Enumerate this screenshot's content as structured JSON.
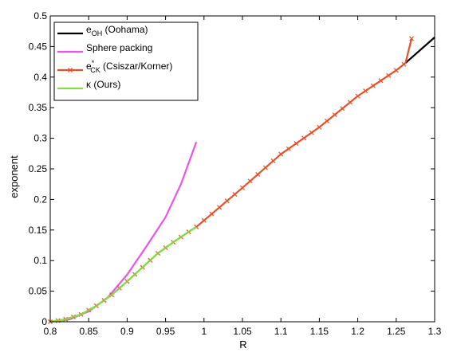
{
  "chart_data": {
    "type": "line",
    "xlabel": "R",
    "ylabel": "exponent",
    "xlim": [
      0.8,
      1.3
    ],
    "ylim": [
      0,
      0.5
    ],
    "x_ticks": [
      "0.8",
      "0.85",
      "0.9",
      "0.95",
      "1",
      "1.05",
      "1.1",
      "1.15",
      "1.2",
      "1.25",
      "1.3"
    ],
    "y_ticks": [
      "0",
      "0.05",
      "0.1",
      "0.15",
      "0.2",
      "0.25",
      "0.3",
      "0.35",
      "0.4",
      "0.45",
      "0.5"
    ],
    "legend_position": "top-left",
    "legend": [
      {
        "key": "oh",
        "label_main": "e",
        "label_sub": "OH",
        "label_sup": "",
        "label_rest": " (Oohama)",
        "color": "#000000",
        "marker": "none"
      },
      {
        "key": "sphere",
        "label_main": "Sphere packing",
        "label_sub": "",
        "label_sup": "",
        "label_rest": "",
        "color": "#e855e8",
        "marker": "none"
      },
      {
        "key": "ck",
        "label_main": "e",
        "label_sub": "CK",
        "label_sup": "*",
        "label_rest": " (Csiszar/Korner)",
        "color": "#e8502a",
        "marker": "x"
      },
      {
        "key": "kappa",
        "label_main": "κ (Ours)",
        "label_sub": "",
        "label_sup": "",
        "label_rest": "",
        "color": "#80e048",
        "marker": "none"
      }
    ],
    "series": [
      {
        "key": "oh",
        "color": "#000000",
        "marker": "none",
        "points": [
          [
            1.262,
            0.423
          ],
          [
            1.3,
            0.465
          ]
        ]
      },
      {
        "key": "sphere",
        "color": "#e855e8",
        "marker": "none",
        "points": [
          [
            0.8,
            0.0
          ],
          [
            0.825,
            0.004
          ],
          [
            0.85,
            0.017
          ],
          [
            0.875,
            0.04
          ],
          [
            0.9,
            0.077
          ],
          [
            0.925,
            0.123
          ],
          [
            0.95,
            0.171
          ],
          [
            0.97,
            0.225
          ],
          [
            0.99,
            0.294
          ]
        ]
      },
      {
        "key": "ck",
        "color": "#e8502a",
        "marker": "x",
        "points": [
          [
            0.8,
            0.0
          ],
          [
            0.82,
            0.004
          ],
          [
            0.84,
            0.012
          ],
          [
            0.86,
            0.026
          ],
          [
            0.88,
            0.044
          ],
          [
            0.9,
            0.066
          ],
          [
            0.92,
            0.089
          ],
          [
            0.94,
            0.112
          ],
          [
            0.96,
            0.13
          ],
          [
            0.98,
            0.147
          ],
          [
            0.99,
            0.155
          ],
          [
            1.05,
            0.219
          ],
          [
            1.1,
            0.274
          ],
          [
            1.15,
            0.318
          ],
          [
            1.2,
            0.369
          ],
          [
            1.25,
            0.411
          ],
          [
            1.262,
            0.423
          ],
          [
            1.27,
            0.463
          ]
        ]
      },
      {
        "key": "kappa",
        "color": "#80e048",
        "marker": "none",
        "points": [
          [
            0.8,
            0.0
          ],
          [
            0.82,
            0.004
          ],
          [
            0.84,
            0.012
          ],
          [
            0.86,
            0.026
          ],
          [
            0.88,
            0.044
          ],
          [
            0.9,
            0.066
          ],
          [
            0.92,
            0.089
          ],
          [
            0.94,
            0.112
          ],
          [
            0.96,
            0.13
          ],
          [
            0.98,
            0.147
          ],
          [
            0.99,
            0.155
          ]
        ]
      }
    ]
  }
}
